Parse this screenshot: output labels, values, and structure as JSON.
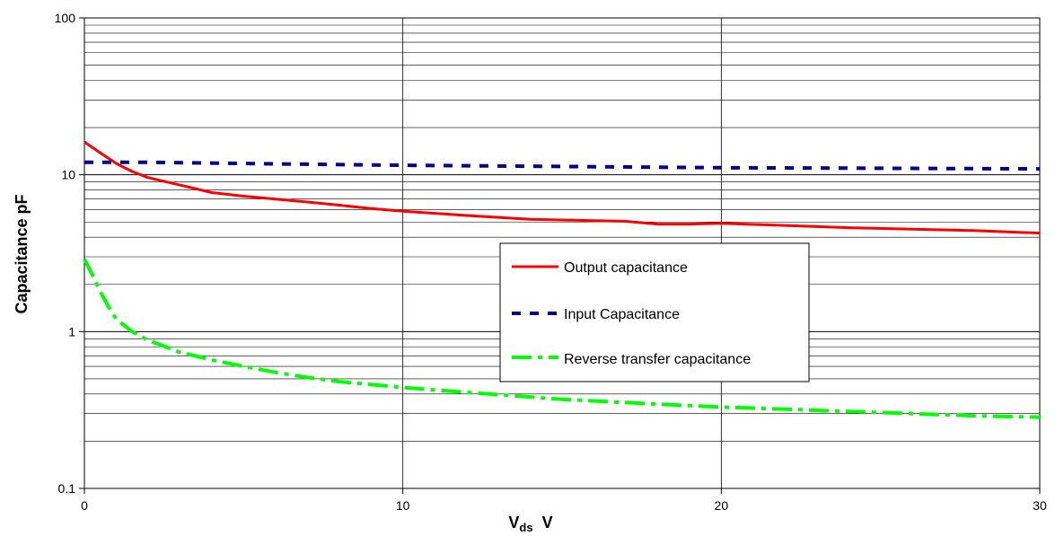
{
  "chart_data": {
    "type": "line",
    "title": "",
    "xlabel_main": "V",
    "xlabel_sub": "ds",
    "xlabel_unit": "V",
    "ylabel": "Capacitance pF",
    "xlim": [
      0,
      30
    ],
    "ylim": [
      0.1,
      100
    ],
    "yscale": "log",
    "grid": "on",
    "legend_position": "center-right",
    "x_ticks": [
      "0",
      "10",
      "20",
      "30"
    ],
    "y_ticks": [
      "0.1",
      "1",
      "10",
      "100"
    ],
    "series": [
      {
        "name": "Output capacitance",
        "color": "#ff0000",
        "style": "solid",
        "x": [
          0,
          0.5,
          1,
          1.5,
          2,
          3,
          4,
          5,
          6,
          7,
          8,
          9,
          10,
          12,
          14,
          16,
          17,
          18,
          19,
          20,
          22,
          24,
          26,
          28,
          30
        ],
        "y": [
          16.2,
          13.8,
          11.8,
          10.5,
          9.6,
          8.6,
          7.7,
          7.3,
          7.0,
          6.7,
          6.4,
          6.1,
          5.85,
          5.5,
          5.2,
          5.1,
          5.05,
          4.85,
          4.85,
          4.9,
          4.75,
          4.6,
          4.5,
          4.4,
          4.25
        ]
      },
      {
        "name": "Input Capacitance",
        "color": "#00008b",
        "style": "dash",
        "x": [
          0,
          2,
          5,
          10,
          15,
          20,
          25,
          30
        ],
        "y": [
          12.0,
          12.0,
          11.8,
          11.5,
          11.3,
          11.1,
          11.0,
          10.9
        ]
      },
      {
        "name": "Reverse transfer capacitance",
        "color": "#00ff00",
        "style": "dashdot",
        "x": [
          0,
          0.25,
          0.5,
          0.75,
          1,
          1.5,
          2,
          3,
          4,
          5,
          6,
          7,
          8,
          10,
          12,
          15,
          18,
          20,
          22,
          25,
          28,
          30
        ],
        "y": [
          2.9,
          2.3,
          1.8,
          1.45,
          1.2,
          1.0,
          0.88,
          0.74,
          0.66,
          0.6,
          0.55,
          0.51,
          0.48,
          0.44,
          0.41,
          0.37,
          0.345,
          0.33,
          0.32,
          0.305,
          0.29,
          0.285
        ]
      }
    ]
  }
}
